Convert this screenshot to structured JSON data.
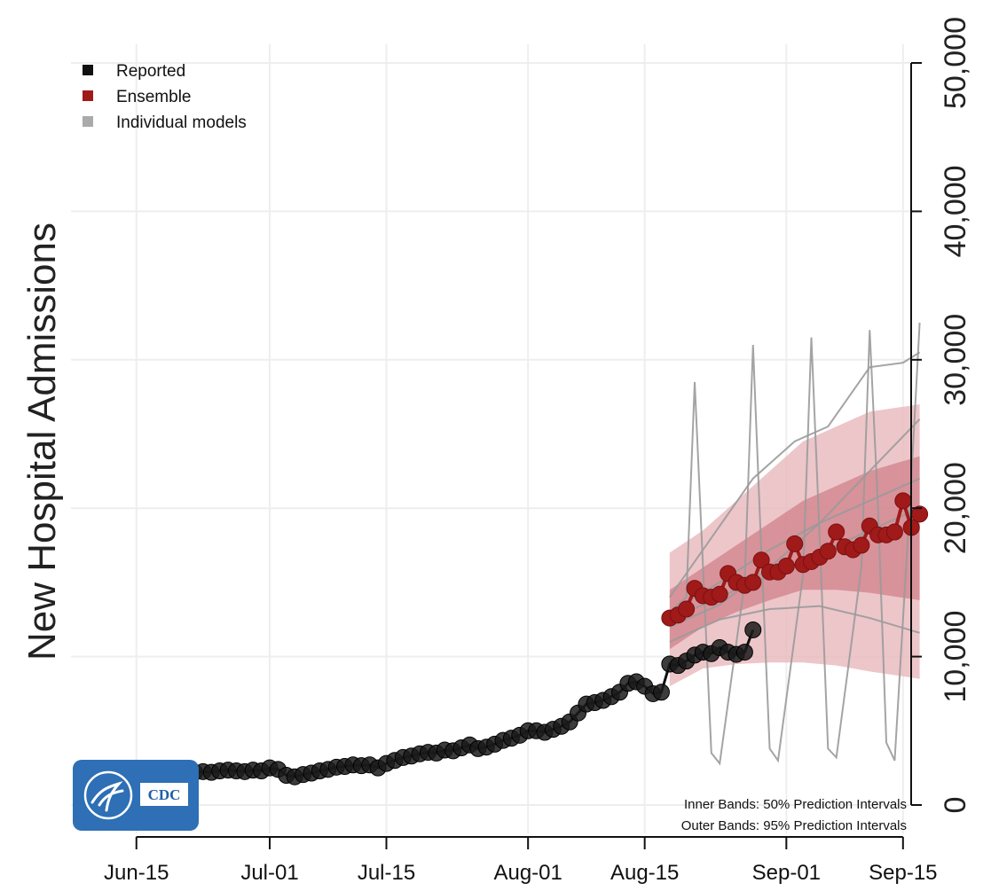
{
  "chart_data": {
    "type": "line",
    "xlabel": "",
    "ylabel": "New Hospital Admissions",
    "x_ticks": [
      "Jun-15",
      "Jul-01",
      "Jul-15",
      "Aug-01",
      "Aug-15",
      "Sep-01",
      "Sep-15"
    ],
    "x_range": [
      "2021-06-08",
      "2021-09-18"
    ],
    "y_ticks": [
      "0",
      "10,000",
      "20,000",
      "30,000",
      "40,000",
      "50,000"
    ],
    "ylim": [
      0,
      50000
    ],
    "grid": true,
    "legend_position": "top-left",
    "legend": [
      {
        "label": "Reported",
        "color": "#111111"
      },
      {
        "label": "Ensemble",
        "color": "#a01a1a"
      },
      {
        "label": "Individual models",
        "color": "#aaaaaa"
      }
    ],
    "annotations": [
      "Inner Bands: 50% Prediction Intervals",
      "Outer Bands: 95% Prediction Intervals"
    ],
    "reported": {
      "x": [
        "2021-06-11",
        "2021-06-12",
        "2021-06-13",
        "2021-06-14",
        "2021-06-15",
        "2021-06-16",
        "2021-06-17",
        "2021-06-18",
        "2021-06-19",
        "2021-06-20",
        "2021-06-21",
        "2021-06-22",
        "2021-06-23",
        "2021-06-24",
        "2021-06-25",
        "2021-06-26",
        "2021-06-27",
        "2021-06-28",
        "2021-06-29",
        "2021-06-30",
        "2021-07-01",
        "2021-07-02",
        "2021-07-03",
        "2021-07-04",
        "2021-07-05",
        "2021-07-06",
        "2021-07-07",
        "2021-07-08",
        "2021-07-09",
        "2021-07-10",
        "2021-07-11",
        "2021-07-12",
        "2021-07-13",
        "2021-07-14",
        "2021-07-15",
        "2021-07-16",
        "2021-07-17",
        "2021-07-18",
        "2021-07-19",
        "2021-07-20",
        "2021-07-21",
        "2021-07-22",
        "2021-07-23",
        "2021-07-24",
        "2021-07-25",
        "2021-07-26",
        "2021-07-27",
        "2021-07-28",
        "2021-07-29",
        "2021-07-30",
        "2021-07-31",
        "2021-08-01",
        "2021-08-02",
        "2021-08-03",
        "2021-08-04",
        "2021-08-05",
        "2021-08-06",
        "2021-08-07",
        "2021-08-08",
        "2021-08-09",
        "2021-08-10"
      ],
      "y": [
        2150,
        2050,
        2050,
        2100,
        2000,
        2000,
        1950,
        1900,
        1850,
        2050,
        2100,
        2200,
        2250,
        2200,
        2300,
        2350,
        2300,
        2250,
        2350,
        2300,
        2500,
        2400,
        2000,
        1900,
        2050,
        2150,
        2300,
        2400,
        2550,
        2600,
        2700,
        2650,
        2700,
        2500,
        2800,
        3000,
        3200,
        3300,
        3450,
        3550,
        3500,
        3700,
        3650,
        3850,
        4050,
        3800,
        3900,
        4100,
        4350,
        4500,
        4700,
        5000,
        5000,
        4900,
        5100,
        5300,
        5600,
        6200,
        6800,
        6900,
        7050
      ]
    },
    "reported_tail": {
      "x": [
        "2021-08-11",
        "2021-08-12",
        "2021-08-13",
        "2021-08-14",
        "2021-08-15",
        "2021-08-16",
        "2021-08-17",
        "2021-08-18",
        "2021-08-19",
        "2021-08-20",
        "2021-08-21",
        "2021-08-22",
        "2021-08-23",
        "2021-08-24",
        "2021-08-25",
        "2021-08-26",
        "2021-08-27",
        "2021-08-28"
      ],
      "y": [
        7300,
        7600,
        8200,
        8300,
        8000,
        7500,
        7600,
        9500,
        9400,
        9700,
        10100,
        10300,
        10200,
        10600,
        10300,
        10150,
        10300,
        11800
      ]
    },
    "ensemble": {
      "x": [
        "2021-08-18",
        "2021-08-19",
        "2021-08-20",
        "2021-08-21",
        "2021-08-22",
        "2021-08-23",
        "2021-08-24",
        "2021-08-25",
        "2021-08-26",
        "2021-08-27",
        "2021-08-28",
        "2021-08-29",
        "2021-08-30",
        "2021-08-31",
        "2021-09-01",
        "2021-09-02",
        "2021-09-03",
        "2021-09-04",
        "2021-09-05",
        "2021-09-06",
        "2021-09-07",
        "2021-09-08",
        "2021-09-09",
        "2021-09-10",
        "2021-09-11",
        "2021-09-12",
        "2021-09-13",
        "2021-09-14",
        "2021-09-15",
        "2021-09-16",
        "2021-09-17"
      ],
      "y": [
        12600,
        12800,
        13200,
        14600,
        14100,
        14000,
        14200,
        15600,
        15000,
        14800,
        15000,
        16500,
        15700,
        15700,
        16100,
        17600,
        16200,
        16400,
        16700,
        17100,
        18400,
        17400,
        17200,
        17500,
        18800,
        18200,
        18200,
        18400,
        20500,
        18700,
        19600
      ]
    },
    "ensemble_95": {
      "x": [
        "2021-08-18",
        "2021-08-22",
        "2021-08-26",
        "2021-08-30",
        "2021-09-03",
        "2021-09-07",
        "2021-09-11",
        "2021-09-17"
      ],
      "lower": [
        8000,
        9200,
        9500,
        9600,
        9600,
        9400,
        9000,
        8500
      ],
      "upper": [
        17000,
        18500,
        20500,
        22500,
        24500,
        25500,
        26500,
        27000
      ]
    },
    "ensemble_50": {
      "x": [
        "2021-08-18",
        "2021-08-22",
        "2021-08-26",
        "2021-08-30",
        "2021-09-03",
        "2021-09-07",
        "2021-09-11",
        "2021-09-17"
      ],
      "lower": [
        10500,
        12000,
        13000,
        13800,
        14500,
        14500,
        14300,
        13800
      ],
      "upper": [
        14500,
        16000,
        17500,
        19000,
        20500,
        21500,
        22500,
        23500
      ]
    },
    "individual_models": [
      {
        "x": [
          "2021-08-18",
          "2021-08-24",
          "2021-08-30",
          "2021-09-05",
          "2021-09-11",
          "2021-09-17"
        ],
        "y": [
          12000,
          13500,
          16000,
          19000,
          22500,
          26000
        ]
      },
      {
        "x": [
          "2021-08-18",
          "2021-08-24",
          "2021-08-30",
          "2021-09-05",
          "2021-09-11",
          "2021-09-17"
        ],
        "y": [
          13000,
          15000,
          17200,
          19000,
          20500,
          22000
        ]
      },
      {
        "x": [
          "2021-08-18",
          "2021-08-24",
          "2021-08-30",
          "2021-09-05",
          "2021-09-11",
          "2021-09-17"
        ],
        "y": [
          11000,
          12500,
          13200,
          13400,
          12600,
          11600
        ]
      },
      {
        "x": [
          "2021-08-18",
          "2021-08-24",
          "2021-08-30",
          "2021-09-05",
          "2021-09-11",
          "2021-09-17"
        ],
        "y": [
          12500,
          14000,
          15500,
          17000,
          18500,
          20000
        ]
      },
      {
        "x": [
          "2021-08-18",
          "2021-08-23",
          "2021-08-28",
          "2021-09-02",
          "2021-09-06",
          "2021-09-11",
          "2021-09-15",
          "2021-09-17"
        ],
        "y": [
          14000,
          18000,
          22000,
          24500,
          25500,
          29500,
          29800,
          30500
        ]
      },
      {
        "x": [
          "2021-08-18",
          "2021-08-20",
          "2021-08-21",
          "2021-08-22",
          "2021-08-23",
          "2021-08-24",
          "2021-08-27",
          "2021-08-28",
          "2021-08-29",
          "2021-08-30",
          "2021-08-31",
          "2021-09-03",
          "2021-09-04",
          "2021-09-05",
          "2021-09-06",
          "2021-09-07",
          "2021-09-10",
          "2021-09-11",
          "2021-09-12",
          "2021-09-13",
          "2021-09-14",
          "2021-09-16",
          "2021-09-17"
        ],
        "y": [
          13000,
          14000,
          28500,
          16000,
          3500,
          2800,
          15000,
          31000,
          17000,
          3800,
          3000,
          15500,
          31500,
          18000,
          3800,
          3200,
          16000,
          32000,
          20000,
          4200,
          3000,
          22000,
          32500
        ]
      }
    ]
  },
  "logo": {
    "text": "CDC"
  }
}
